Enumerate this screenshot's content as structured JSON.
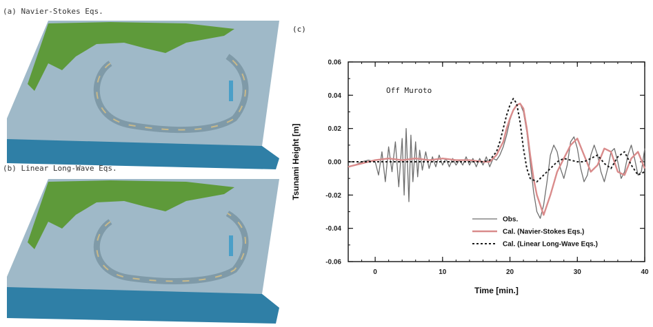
{
  "panels": {
    "a_label": "(a) Navier-Stokes Eqs.",
    "b_label": "(b) Linear Long-Wave Eqs.",
    "c_label": "(c)"
  },
  "colors": {
    "obs": "#6e6e6e",
    "cal_ns": "#d98b8b",
    "cal_llw": "#1a1a1a",
    "sea_side": "#2f7fa6",
    "sea_top": "#9fb9c8",
    "land": "#5e9a3a"
  },
  "chart_data": {
    "type": "line",
    "xlabel": "Time [min.]",
    "ylabel": "Tsunami Height [m]",
    "annotation": "Off Muroto",
    "xlim": [
      -4,
      40
    ],
    "ylim": [
      -0.06,
      0.06
    ],
    "xticks": [
      0,
      10,
      20,
      30,
      40
    ],
    "yticks": [
      -0.06,
      -0.04,
      -0.02,
      0.0,
      0.02,
      0.04,
      0.06
    ],
    "ytick_labels": [
      "-0.06",
      "-0.04",
      "-0.02",
      "0.00",
      "0.02",
      "0.04",
      "0.06"
    ],
    "grid": false,
    "legend_position": "bottom-right",
    "series": [
      {
        "name": "Obs.",
        "style": "solid",
        "x": [
          -4,
          -3,
          -2,
          -1,
          0,
          0.5,
          1,
          1.5,
          2,
          2.5,
          3,
          3.5,
          4,
          4.3,
          4.6,
          5,
          5.3,
          5.6,
          6,
          6.3,
          6.6,
          7,
          7.5,
          8,
          8.5,
          9,
          9.5,
          10,
          10.5,
          11,
          11.5,
          12,
          12.5,
          13,
          13.5,
          14,
          14.5,
          15,
          15.5,
          16,
          16.5,
          17,
          17.5,
          18,
          18.5,
          19,
          19.5,
          20,
          20.5,
          21,
          21.5,
          22,
          22.5,
          23,
          23.5,
          24,
          24.5,
          25,
          25.5,
          26,
          26.5,
          27,
          27.5,
          28,
          28.5,
          29,
          29.5,
          30,
          30.5,
          31,
          31.5,
          32,
          32.5,
          33,
          33.5,
          34,
          34.5,
          35,
          35.5,
          36,
          36.5,
          37,
          37.5,
          38,
          38.5,
          39,
          39.5,
          40
        ],
        "y": [
          -0.003,
          -0.002,
          0.0,
          0.001,
          0.0,
          -0.008,
          0.006,
          -0.012,
          0.009,
          -0.006,
          0.012,
          -0.015,
          0.014,
          -0.02,
          0.02,
          -0.024,
          0.016,
          -0.012,
          0.012,
          -0.009,
          0.007,
          -0.005,
          0.006,
          -0.004,
          0.003,
          -0.003,
          0.004,
          -0.002,
          0.002,
          -0.003,
          0.002,
          -0.002,
          0.001,
          -0.002,
          0.003,
          -0.002,
          0.002,
          -0.003,
          0.002,
          -0.002,
          0.003,
          -0.003,
          0.002,
          0.001,
          0.004,
          0.009,
          0.016,
          0.025,
          0.031,
          0.034,
          0.035,
          0.03,
          0.018,
          0.0,
          -0.018,
          -0.03,
          -0.034,
          -0.026,
          -0.012,
          0.004,
          0.01,
          0.006,
          -0.004,
          -0.01,
          -0.002,
          0.012,
          0.015,
          0.008,
          -0.004,
          -0.012,
          -0.008,
          0.004,
          0.01,
          0.004,
          -0.006,
          -0.012,
          -0.004,
          0.006,
          0.008,
          0.0,
          -0.01,
          -0.006,
          0.004,
          0.01,
          0.002,
          -0.008,
          -0.006,
          0.008
        ]
      },
      {
        "name": "Cal. (Navier-Stokes Eqs.)",
        "style": "solid",
        "x": [
          -4,
          -2,
          0,
          2,
          4,
          6,
          8,
          10,
          12,
          14,
          16,
          17,
          18,
          19,
          19.5,
          20,
          20.5,
          21,
          21.5,
          22,
          22.5,
          23,
          23.5,
          24,
          25,
          26,
          27,
          28,
          29,
          30,
          31,
          32,
          33,
          34,
          35,
          36,
          37,
          38,
          39,
          40
        ],
        "y": [
          -0.003,
          -0.001,
          0.001,
          0.002,
          0.001,
          0.002,
          0.001,
          0.002,
          0.001,
          0.001,
          0.0,
          0.0,
          0.004,
          0.012,
          0.02,
          0.026,
          0.031,
          0.034,
          0.035,
          0.032,
          0.02,
          0.004,
          -0.01,
          -0.02,
          -0.032,
          -0.02,
          -0.006,
          0.002,
          0.01,
          0.014,
          0.004,
          -0.006,
          -0.002,
          0.008,
          0.006,
          -0.006,
          -0.008,
          0.002,
          0.006,
          -0.004
        ]
      },
      {
        "name": "Cal. (Linear Long-Wave Eqs.)",
        "style": "dotted",
        "x": [
          -4,
          -2,
          0,
          2,
          4,
          6,
          8,
          10,
          12,
          14,
          16,
          17,
          18,
          18.5,
          19,
          19.5,
          20,
          20.5,
          21,
          21.5,
          22,
          22.5,
          23,
          24,
          25,
          26,
          27,
          28,
          29,
          30,
          31,
          32,
          33,
          34,
          35,
          36,
          37,
          38,
          39,
          40
        ],
        "y": [
          0.0,
          0.0,
          0.0,
          0.0,
          0.0,
          0.0,
          0.0,
          0.0,
          0.0,
          0.0,
          0.0,
          0.001,
          0.006,
          0.012,
          0.02,
          0.028,
          0.034,
          0.038,
          0.035,
          0.024,
          0.008,
          -0.004,
          -0.01,
          -0.012,
          -0.008,
          -0.004,
          0.0,
          0.002,
          0.001,
          0.0,
          0.0,
          0.002,
          0.004,
          -0.001,
          -0.004,
          0.003,
          0.006,
          -0.002,
          -0.008,
          -0.006
        ]
      }
    ]
  }
}
